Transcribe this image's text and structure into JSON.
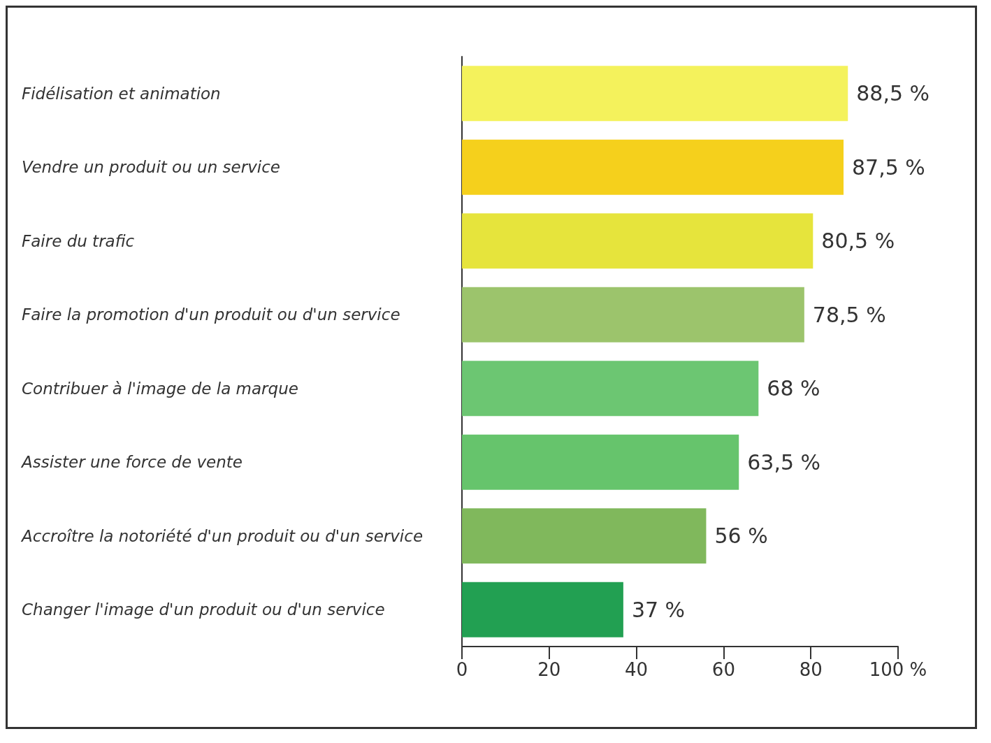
{
  "chart_data": {
    "type": "bar",
    "orientation": "horizontal",
    "categories": [
      "Fidélisation et animation",
      "Vendre un produit ou un service",
      "Faire du trafic",
      "Faire la promotion d'un produit ou d'un service",
      "Contribuer à l'image de la marque",
      "Assister une force de vente",
      "Accroître la notoriété d'un produit ou d'un service",
      "Changer l'image d'un produit ou d'un service"
    ],
    "values": [
      88.5,
      87.5,
      80.5,
      78.5,
      68,
      63.5,
      56,
      37
    ],
    "value_labels": [
      "88,5 %",
      "87,5 %",
      "80,5 %",
      "78,5 %",
      "68 %",
      "63,5 %",
      "56 %",
      "37 %"
    ],
    "colors": [
      "#f4f25c",
      "#f5d01c",
      "#e6e43c",
      "#9cc46c",
      "#6cc672",
      "#66c46c",
      "#80b85c",
      "#22a052"
    ],
    "xlim": [
      0,
      100
    ],
    "xticks": [
      0,
      20,
      40,
      60,
      80,
      {
        "value": 100,
        "label": "100 %"
      }
    ],
    "grid": false
  }
}
